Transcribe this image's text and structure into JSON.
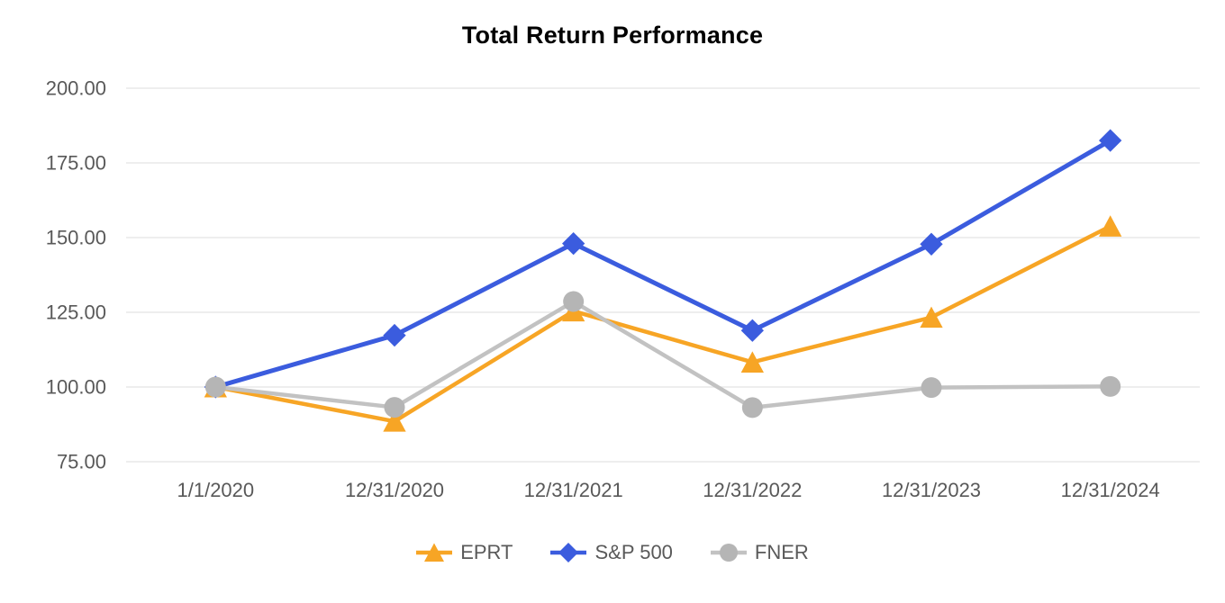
{
  "chart_data": {
    "type": "line",
    "title": "Total Return Performance",
    "categories": [
      "1/1/2020",
      "12/31/2020",
      "12/31/2021",
      "12/31/2022",
      "12/31/2023",
      "12/31/2024"
    ],
    "series": [
      {
        "name": "EPRT",
        "color": "#F7A525",
        "marker": "triangle",
        "values": [
          100.0,
          88.5,
          125.4,
          108.3,
          123.3,
          153.8
        ]
      },
      {
        "name": "S&P 500",
        "color": "#3B5CDE",
        "marker": "diamond",
        "values": [
          100.0,
          117.3,
          148.0,
          118.9,
          147.8,
          182.5
        ]
      },
      {
        "name": "FNER",
        "color": "#B5B5B5",
        "line_color": "#C2C2C2",
        "marker": "circle",
        "values": [
          100.0,
          93.2,
          128.6,
          93.1,
          99.8,
          100.2
        ]
      }
    ],
    "y_axis": {
      "min": 75,
      "max": 200,
      "ticks": [
        {
          "label": "200.00",
          "value": 200
        },
        {
          "label": "175.00",
          "value": 175
        },
        {
          "label": "150.00",
          "value": 150
        },
        {
          "label": "125.00",
          "value": 125
        },
        {
          "label": "100.00",
          "value": 100
        },
        {
          "label": "75.00",
          "value": 75
        }
      ]
    },
    "legend": {
      "position": "bottom",
      "entries": [
        "EPRT",
        "S&P 500",
        "FNER"
      ]
    },
    "grid": true,
    "gridline_color": "#E8E8E8",
    "axis_label_color": "#595959"
  }
}
